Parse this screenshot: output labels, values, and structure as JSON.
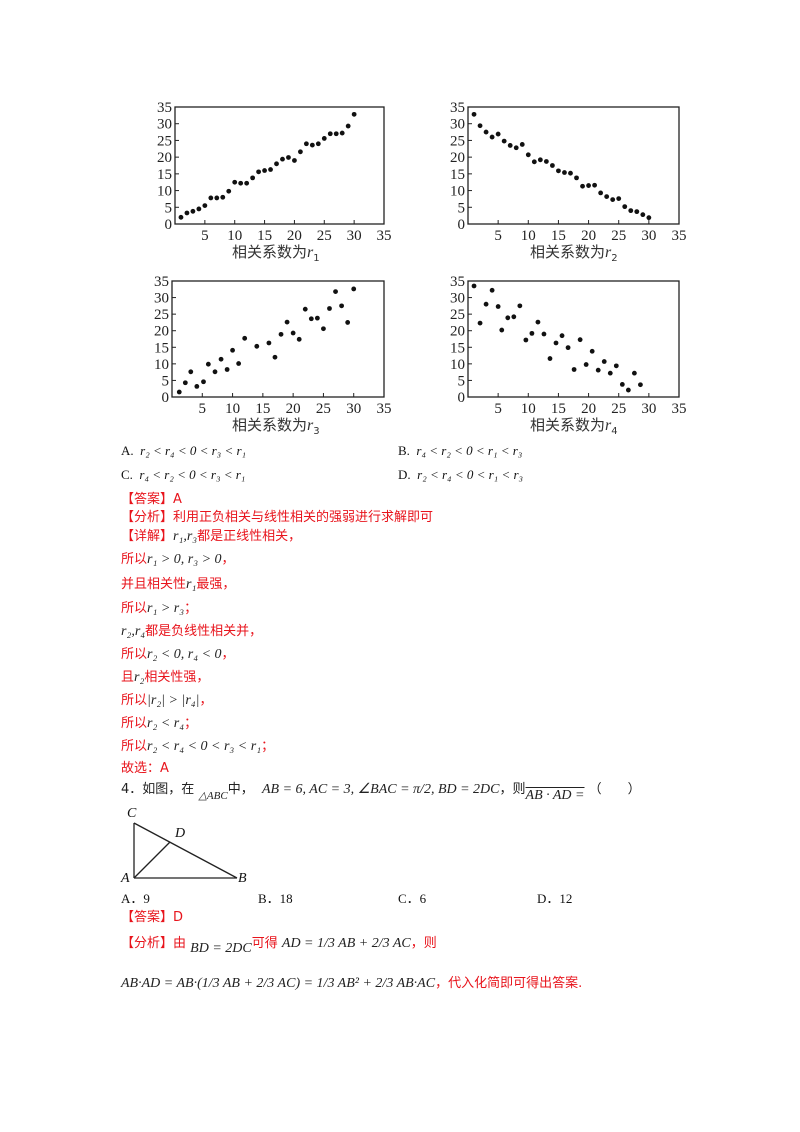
{
  "chart_data": [
    {
      "type": "scatter",
      "title": "",
      "xlabel": "相关系数为 r1",
      "xlabel_main": "相关系数为",
      "xlabel_var": "r",
      "xlabel_sub": "1",
      "ylabel": "",
      "xlim": [
        0,
        35
      ],
      "ylim": [
        0,
        35
      ],
      "xticks": [
        5,
        10,
        15,
        20,
        25,
        30,
        35
      ],
      "yticks": [
        0,
        5,
        10,
        15,
        20,
        25,
        30,
        35
      ],
      "grid": false,
      "x": [
        1,
        2,
        3,
        4,
        5,
        6,
        7,
        8,
        9,
        10,
        11,
        12,
        13,
        14,
        15,
        16,
        17,
        18,
        19,
        20,
        21,
        22,
        23,
        24,
        25,
        26,
        27,
        28,
        29,
        30
      ],
      "y": [
        2,
        3.3,
        3.8,
        4.5,
        5.5,
        7.8,
        7.8,
        8,
        9.8,
        12.5,
        12.2,
        12.2,
        13.8,
        15.6,
        16,
        16.3,
        18,
        19.4,
        19.9,
        19,
        21.6,
        24,
        23.6,
        24,
        25.6,
        27,
        27,
        27.2,
        29.3,
        32.8
      ]
    },
    {
      "type": "scatter",
      "title": "",
      "xlabel": "相关系数为 r2",
      "xlabel_main": "相关系数为",
      "xlabel_var": "r",
      "xlabel_sub": "2",
      "ylabel": "",
      "xlim": [
        0,
        35
      ],
      "ylim": [
        0,
        35
      ],
      "xticks": [
        5,
        10,
        15,
        20,
        25,
        30,
        35
      ],
      "yticks": [
        0,
        5,
        10,
        15,
        20,
        25,
        30,
        35
      ],
      "grid": false,
      "x": [
        1,
        2,
        3,
        4,
        5,
        6,
        7,
        8,
        9,
        10,
        11,
        12,
        13,
        14,
        15,
        16,
        17,
        18,
        19,
        20,
        21,
        22,
        23,
        24,
        25,
        26,
        27,
        28,
        29,
        30
      ],
      "y": [
        32.8,
        29.4,
        27.5,
        26,
        26.9,
        24.8,
        23.5,
        22.8,
        23.8,
        20.7,
        18.6,
        19.2,
        18.7,
        17.5,
        15.9,
        15.4,
        15.2,
        13.8,
        11.3,
        11.5,
        11.6,
        9.3,
        8.2,
        7.3,
        7.6,
        5.2,
        4,
        3.7,
        2.8,
        1.9
      ]
    },
    {
      "type": "scatter",
      "title": "",
      "xlabel": "相关系数为 r3",
      "xlabel_main": "相关系数为",
      "xlabel_var": "r",
      "xlabel_sub": "3",
      "ylabel": "",
      "xlim": [
        0,
        35
      ],
      "ylim": [
        0,
        35
      ],
      "xticks": [
        5,
        10,
        15,
        20,
        25,
        30,
        35
      ],
      "yticks": [
        0,
        5,
        10,
        15,
        20,
        25,
        30,
        35
      ],
      "grid": false,
      "x": [
        1.2,
        2.2,
        3.1,
        4.1,
        5.2,
        6,
        7.1,
        8.1,
        9.1,
        10,
        11,
        12,
        14,
        16,
        17,
        18,
        19,
        20,
        21,
        22,
        23,
        24,
        25,
        26,
        27,
        28,
        29,
        30
      ],
      "y": [
        1.5,
        4.3,
        7.6,
        3.2,
        4.6,
        9.9,
        7.6,
        11.4,
        8.3,
        14.1,
        10.1,
        17.7,
        15.3,
        16.3,
        12,
        18.9,
        22.6,
        19.3,
        17.4,
        26.5,
        23.6,
        23.8,
        20.6,
        26.7,
        31.8,
        27.5,
        22.5,
        32.6
      ]
    },
    {
      "type": "scatter",
      "title": "",
      "xlabel": "相关系数为 r4",
      "xlabel_main": "相关系数为",
      "xlabel_var": "r",
      "xlabel_sub": "4",
      "ylabel": "",
      "xlim": [
        0,
        35
      ],
      "ylim": [
        0,
        35
      ],
      "xticks": [
        5,
        10,
        15,
        20,
        25,
        30,
        35
      ],
      "yticks": [
        0,
        5,
        10,
        15,
        20,
        25,
        30,
        35
      ],
      "grid": false,
      "x": [
        1,
        2,
        3,
        4,
        5,
        5.6,
        6.6,
        7.6,
        8.6,
        9.6,
        10.6,
        11.6,
        12.6,
        13.6,
        14.6,
        15.6,
        16.6,
        17.6,
        18.6,
        19.6,
        20.6,
        21.6,
        22.6,
        23.6,
        24.6,
        25.6,
        26.6,
        27.6,
        28.6
      ],
      "y": [
        33.5,
        22.3,
        28,
        32.2,
        27.3,
        20.2,
        23.9,
        24.2,
        27.5,
        17.2,
        19.2,
        22.6,
        19,
        11.6,
        16.3,
        18.5,
        14.9,
        8.3,
        17.3,
        9.8,
        13.8,
        8.1,
        10.7,
        7.2,
        9.4,
        3.8,
        2.1,
        7.2,
        3.7
      ]
    }
  ],
  "question3": {
    "options": [
      {
        "label": "A.",
        "expr": "r₂ < r₄ < 0 < r₃ < r₁"
      },
      {
        "label": "B.",
        "expr": "r₄ < r₂ < 0 < r₁ < r₃"
      },
      {
        "label": "C.",
        "expr": "r₄ < r₂ < 0 < r₃ < r₁"
      },
      {
        "label": "D.",
        "expr": "r₂ < r₄ < 0 < r₁ < r₃"
      }
    ],
    "answer_tag": "【答案】",
    "answer": "A",
    "analysis_tag": "【分析】",
    "analysis": "利用正负相关与线性相关的强弱进行求解即可",
    "detail_tag": "【详解】",
    "detail_lines": [
      {
        "math": "r₁,r₃",
        "text": "都是正线性相关，"
      },
      {
        "prefix": "所以",
        "math": "r₁ > 0, r₃ > 0",
        "text": "，"
      },
      {
        "prefix": "并且相关性",
        "math": "r₁",
        "text": "最强，"
      },
      {
        "prefix": "所以",
        "math": "r₁ > r₃",
        "text": "；"
      },
      {
        "math": "r₂,r₄",
        "text": "都是负线性相关并，"
      },
      {
        "prefix": "所以",
        "math": "r₂ < 0, r₄ < 0",
        "text": "，"
      },
      {
        "prefix": "且",
        "math": "r₂",
        "text": "相关性强，"
      },
      {
        "prefix": "所以",
        "math": "|r₂| > |r₄|",
        "text": "，"
      },
      {
        "prefix": "所以",
        "math": "r₂ < r₄",
        "text": "；"
      },
      {
        "prefix": "所以",
        "math": "r₂ < r₄ < 0 < r₃ < r₁",
        "text": "；"
      },
      {
        "prefix": "故选：",
        "math": "",
        "text": "A"
      }
    ]
  },
  "question4": {
    "number": "4．",
    "stem_prefix": "如图，在",
    "triangle": "△ABC",
    "stem_mid": "中，",
    "conditions": "AB = 6, AC = 3, ∠BAC = π/2, BD = 2DC",
    "stem_suffix": "，则",
    "target": "AB · AD =",
    "paren": "（　　）",
    "figure_labels": {
      "C": "C",
      "D": "D",
      "A": "A",
      "B": "B"
    },
    "options": [
      {
        "label": "A．",
        "value": "9"
      },
      {
        "label": "B．",
        "value": "18"
      },
      {
        "label": "C．",
        "value": "6"
      },
      {
        "label": "D．",
        "value": "12"
      }
    ],
    "answer_tag": "【答案】",
    "answer": "D",
    "analysis_tag": "【分析】",
    "analysis_pre": "由",
    "analysis_cond": "BD = 2DC",
    "analysis_mid": "可得",
    "analysis_eq": "AD = 1/3 AB + 2/3 AC",
    "analysis_then": "，则",
    "analysis_line2_math": "AB·AD = AB·(1/3 AB + 2/3 AC) = 1/3 AB² + 2/3 AB·AC",
    "analysis_line2_text": "，代入化简即可得出答案."
  }
}
